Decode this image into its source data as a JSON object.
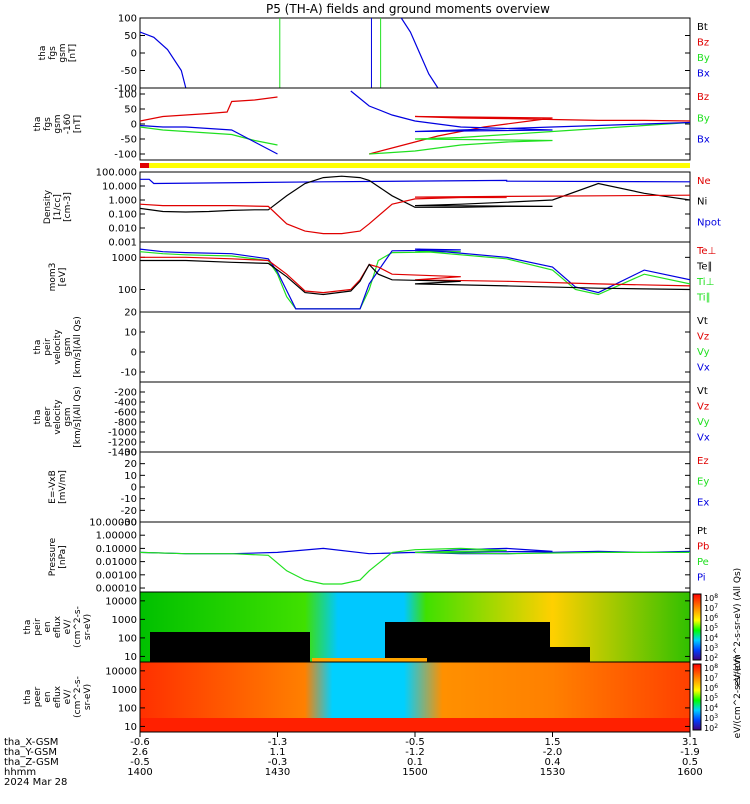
{
  "title": "P5 (TH-A) fields and ground moments overview",
  "colors": {
    "black": "#000000",
    "red": "#e00000",
    "green": "#20e020",
    "blue": "#0000e0",
    "yellow": "#ffff00"
  },
  "chart_data": [
    {
      "type": "line",
      "panel_id": "fgs",
      "ylabel": [
        "tha",
        "fgs",
        "gsm",
        "[nT]"
      ],
      "ylim": [
        -100,
        100
      ],
      "yticks": [
        "100",
        "50",
        "0",
        "-50",
        "-100"
      ],
      "legend": [
        {
          "label": "Bt",
          "color": "#000000"
        },
        {
          "label": "Bz",
          "color": "#e00000"
        },
        {
          "label": "By",
          "color": "#20e020"
        },
        {
          "label": "Bx",
          "color": "#0000e0"
        }
      ],
      "series": [
        {
          "name": "Bx",
          "color": "#0000e0",
          "x": [
            1400,
            1403,
            1406,
            1409,
            1410
          ],
          "y": [
            60,
            45,
            10,
            -50,
            -100
          ]
        },
        {
          "name": "Bx",
          "color": "#0000e0",
          "x": [
            1457,
            1459,
            1461,
            1463,
            1465
          ],
          "y": [
            100,
            60,
            0,
            -60,
            -100
          ]
        }
      ],
      "spikes": [
        {
          "x": 1430.5,
          "color": "#20e020"
        },
        {
          "x": 1450.5,
          "color": "#0000e0"
        },
        {
          "x": 1452.5,
          "color": "#20e020"
        }
      ]
    },
    {
      "type": "line",
      "panel_id": "fgs_detrended",
      "ylabel": [
        "tha",
        "fgs",
        "gsm",
        "-160",
        "[nT]"
      ],
      "ylim": [
        -120,
        120
      ],
      "yticks": [
        "100",
        "50",
        "0",
        "-50",
        "-100"
      ],
      "legend": [
        {
          "label": "Bz",
          "color": "#e00000"
        },
        {
          "label": "By",
          "color": "#20e020"
        },
        {
          "label": "Bx",
          "color": "#0000e0"
        }
      ],
      "series": [
        {
          "name": "Bz",
          "color": "#e00000",
          "x": [
            1400,
            1405,
            1410,
            1415,
            1419,
            1420,
            1425,
            1430
          ],
          "y": [
            10,
            25,
            30,
            35,
            40,
            75,
            80,
            90
          ]
        },
        {
          "name": "Bz",
          "color": "#e00000",
          "x": [
            1450,
            1455,
            1460,
            1465,
            1470,
            1475,
            1480,
            1485,
            1490,
            1500,
            1510,
            1520,
            1530,
            1540,
            1550,
            1560
          ],
          "y": [
            -100,
            -80,
            -60,
            -40,
            -25,
            -10,
            0,
            10,
            20,
            25,
            20,
            18,
            15,
            12,
            12,
            10
          ]
        },
        {
          "name": "By",
          "color": "#20e020",
          "x": [
            1400,
            1405,
            1410,
            1415,
            1420,
            1425,
            1430
          ],
          "y": [
            -10,
            -20,
            -25,
            -30,
            -35,
            -55,
            -70
          ]
        },
        {
          "name": "By",
          "color": "#20e020",
          "x": [
            1450,
            1460,
            1470,
            1480,
            1490,
            1500,
            1510,
            1520,
            1530,
            1540,
            1550,
            1560
          ],
          "y": [
            -100,
            -90,
            -70,
            -60,
            -55,
            -50,
            -45,
            -35,
            -25,
            -15,
            -5,
            5
          ]
        },
        {
          "name": "Bx",
          "color": "#0000e0",
          "x": [
            1400,
            1405,
            1410,
            1415,
            1420,
            1425,
            1430
          ],
          "y": [
            -5,
            -10,
            -10,
            -15,
            -20,
            -60,
            -100
          ]
        },
        {
          "name": "Bx",
          "color": "#0000e0",
          "x": [
            1446,
            1450,
            1455,
            1460,
            1465,
            1470,
            1480,
            1490,
            1500,
            1510,
            1520,
            1530,
            1540,
            1550,
            1560
          ],
          "y": [
            110,
            60,
            30,
            10,
            0,
            -10,
            -15,
            -20,
            -25,
            -20,
            -15,
            -10,
            -5,
            0,
            5
          ]
        }
      ],
      "mode_bar": [
        {
          "from": 1400,
          "to": 1402,
          "color": "#e00000"
        },
        {
          "from": 1402,
          "to": 1560,
          "color": "#ffff00"
        }
      ]
    },
    {
      "type": "line",
      "panel_id": "density",
      "ylabel": [
        "Density",
        "[1/cc]",
        "[cm-3]"
      ],
      "ylim": [
        0.001,
        100
      ],
      "yscale": "log",
      "yticks": [
        "100.000",
        "10.000",
        "1.000",
        "0.100",
        "0.010",
        "0.001"
      ],
      "legend": [
        {
          "label": "Ne",
          "color": "#e00000"
        },
        {
          "label": "Ni",
          "color": "#000000"
        },
        {
          "label": "Npot",
          "color": "#0000e0"
        }
      ],
      "series": [
        {
          "name": "Npot",
          "color": "#0000e0",
          "x": [
            1400,
            1402,
            1403,
            1440,
            1480,
            1520,
            1560
          ],
          "y": [
            30,
            30,
            15,
            20,
            25,
            22,
            20
          ]
        },
        {
          "name": "Ni",
          "color": "#000000",
          "x": [
            1400,
            1405,
            1410,
            1415,
            1420,
            1425,
            1428,
            1432,
            1436,
            1440,
            1444,
            1448,
            1450,
            1455,
            1460,
            1470,
            1480,
            1490,
            1500,
            1510,
            1520,
            1530,
            1540,
            1550,
            1560
          ],
          "y": [
            0.25,
            0.15,
            0.14,
            0.15,
            0.18,
            0.2,
            0.2,
            2,
            15,
            40,
            50,
            40,
            25,
            2,
            0.3,
            0.3,
            0.35,
            0.35,
            0.4,
            0.5,
            0.7,
            1,
            15,
            3,
            1
          ]
        },
        {
          "name": "Ne",
          "color": "#e00000",
          "x": [
            1400,
            1405,
            1410,
            1420,
            1428,
            1432,
            1436,
            1440,
            1444,
            1448,
            1450,
            1455,
            1460,
            1470,
            1480,
            1500,
            1520,
            1540,
            1560
          ],
          "y": [
            0.5,
            0.4,
            0.4,
            0.4,
            0.35,
            0.02,
            0.006,
            0.004,
            0.004,
            0.006,
            0.02,
            0.5,
            1.2,
            1.5,
            1.5,
            1.6,
            1.8,
            2,
            2.2
          ]
        }
      ]
    },
    {
      "type": "line",
      "panel_id": "temperature",
      "ylabel": [
        "mom3",
        "[eV]"
      ],
      "ylim": [
        20,
        3000
      ],
      "yscale": "log",
      "yticks": [
        "1000",
        "100"
      ],
      "legend": [
        {
          "label": "Te⊥",
          "color": "#e00000"
        },
        {
          "label": "Te∥",
          "color": "#000000"
        },
        {
          "label": "Ti⊥",
          "color": "#20e020"
        },
        {
          "label": "Ti∥",
          "color": "#20e020"
        }
      ],
      "series": [
        {
          "name": "Ti",
          "color": "#20e020",
          "x": [
            1400,
            1405,
            1410,
            1420,
            1428,
            1430,
            1432,
            1434,
            1438,
            1442,
            1448,
            1450,
            1452,
            1455,
            1470,
            1500,
            1520,
            1530,
            1535,
            1540,
            1550,
            1560
          ],
          "y": [
            1500,
            1300,
            1200,
            1100,
            800,
            300,
            60,
            25,
            25,
            25,
            25,
            100,
            800,
            1400,
            1500,
            1600,
            900,
            400,
            100,
            70,
            300,
            150
          ]
        },
        {
          "name": "Ti",
          "color": "#0000e0",
          "x": [
            1400,
            1405,
            1410,
            1420,
            1428,
            1430,
            1434,
            1440,
            1448,
            1450,
            1455,
            1470,
            1500,
            1520,
            1530,
            1535,
            1540,
            1550,
            1560
          ],
          "y": [
            1800,
            1500,
            1400,
            1300,
            900,
            350,
            25,
            25,
            25,
            150,
            1600,
            1700,
            1800,
            1000,
            500,
            120,
            80,
            400,
            200
          ]
        },
        {
          "name": "Te",
          "color": "#e00000",
          "x": [
            1400,
            1410,
            1420,
            1428,
            1432,
            1436,
            1440,
            1446,
            1448,
            1450,
            1452,
            1455,
            1470,
            1500,
            1520,
            1540,
            1560
          ],
          "y": [
            1000,
            1000,
            900,
            800,
            300,
            90,
            80,
            100,
            200,
            600,
            500,
            300,
            250,
            200,
            180,
            150,
            130
          ]
        },
        {
          "name": "Te",
          "color": "#000000",
          "x": [
            1400,
            1410,
            1420,
            1428,
            1432,
            1436,
            1440,
            1446,
            1448,
            1450,
            1452,
            1455,
            1470,
            1500,
            1520,
            1540,
            1560
          ],
          "y": [
            800,
            800,
            700,
            650,
            250,
            80,
            70,
            90,
            180,
            600,
            300,
            200,
            180,
            150,
            130,
            110,
            100
          ]
        }
      ]
    },
    {
      "type": "line",
      "panel_id": "peir_velocity",
      "ylabel": [
        "tha",
        "peir",
        "velocity",
        "gsm",
        "[km/s](All Qs)"
      ],
      "ylim": [
        -15,
        20
      ],
      "yticks": [
        "20",
        "10",
        "0",
        "-10"
      ],
      "legend": [
        {
          "label": "Vt",
          "color": "#000000"
        },
        {
          "label": "Vz",
          "color": "#e00000"
        },
        {
          "label": "Vy",
          "color": "#20e020"
        },
        {
          "label": "Vx",
          "color": "#0000e0"
        }
      ]
    },
    {
      "type": "line",
      "panel_id": "peer_velocity",
      "ylabel": [
        "tha",
        "peer",
        "velocity",
        "gsm",
        "[km/s](All Qs)"
      ],
      "ylim": [
        -1400,
        0
      ],
      "yticks": [
        "-200",
        "-400",
        "-600",
        "-800",
        "-1000",
        "-1200",
        "-1400"
      ],
      "legend": [
        {
          "label": "Vt",
          "color": "#000000"
        },
        {
          "label": "Vz",
          "color": "#e00000"
        },
        {
          "label": "Vy",
          "color": "#20e020"
        },
        {
          "label": "Vx",
          "color": "#0000e0"
        }
      ]
    },
    {
      "type": "line",
      "panel_id": "efield",
      "ylabel": [
        "E=-VxB",
        "[mV/m]"
      ],
      "ylim": [
        -30,
        30
      ],
      "yticks": [
        "30",
        "20",
        "10",
        "0",
        "-10",
        "-20",
        "-30"
      ],
      "legend": [
        {
          "label": "Ez",
          "color": "#e00000"
        },
        {
          "label": "Ey",
          "color": "#20e020"
        },
        {
          "label": "Ex",
          "color": "#0000e0"
        }
      ]
    },
    {
      "type": "line",
      "panel_id": "pressure",
      "ylabel": [
        "Pressure",
        "[nPa]"
      ],
      "ylim": [
        5e-05,
        10
      ],
      "yscale": "log",
      "yticks": [
        "10.00000",
        "1.00000",
        "0.10000",
        "0.01000",
        "0.00100",
        "0.00010"
      ],
      "legend": [
        {
          "label": "Pt",
          "color": "#000000"
        },
        {
          "label": "Pb",
          "color": "#e00000"
        },
        {
          "label": "Pe",
          "color": "#20e020"
        },
        {
          "label": "Pi",
          "color": "#0000e0"
        }
      ],
      "series": [
        {
          "name": "Pi",
          "color": "#0000e0",
          "x": [
            1400,
            1410,
            1420,
            1430,
            1440,
            1450,
            1460,
            1470,
            1480,
            1490,
            1500,
            1510,
            1520,
            1530,
            1540,
            1550,
            1560
          ],
          "y": [
            0.05,
            0.04,
            0.04,
            0.05,
            0.1,
            0.04,
            0.05,
            0.08,
            0.1,
            0.06,
            0.05,
            0.04,
            0.04,
            0.05,
            0.06,
            0.05,
            0.06
          ]
        },
        {
          "name": "Pe",
          "color": "#20e020",
          "x": [
            1400,
            1410,
            1420,
            1428,
            1432,
            1436,
            1440,
            1444,
            1448,
            1450,
            1455,
            1460,
            1470,
            1480,
            1500,
            1520,
            1540,
            1560
          ],
          "y": [
            0.05,
            0.04,
            0.04,
            0.03,
            0.002,
            0.0004,
            0.0002,
            0.0002,
            0.0004,
            0.002,
            0.05,
            0.08,
            0.1,
            0.07,
            0.05,
            0.04,
            0.05,
            0.05
          ]
        }
      ]
    },
    {
      "type": "heatmap",
      "panel_id": "peir_eflux",
      "ylabel": [
        "tha",
        "peir",
        "en",
        "eflux",
        "eV/",
        "(cm^2-s-",
        "sr-eV)"
      ],
      "ylim": [
        5,
        30000
      ],
      "yscale": "log",
      "yticks": [
        "10000",
        "1000",
        "100",
        "10"
      ],
      "colorbar": {
        "ticks": [
          "10^8",
          "10^7",
          "10^6",
          "10^5",
          "10^4",
          "10^3",
          "10^2"
        ],
        "label": "eV/(cm^2-s-sr-eV) (All Qs)"
      }
    },
    {
      "type": "heatmap",
      "panel_id": "peer_eflux",
      "ylabel": [
        "tha",
        "peer",
        "en",
        "eflux",
        "eV/",
        "(cm^2-s-",
        "sr-eV)"
      ],
      "ylim": [
        5,
        30000
      ],
      "yscale": "log",
      "yticks": [
        "10000",
        "1000",
        "100",
        "10"
      ],
      "colorbar": {
        "ticks": [
          "10^8",
          "10^7",
          "10^6",
          "10^5",
          "10^4",
          "10^3",
          "10^2"
        ],
        "label": "eV/(cm^2-s-sr-eV)"
      }
    }
  ],
  "x_axis": {
    "rows": [
      {
        "label": "tha_X-GSM",
        "values": [
          "-0.6",
          "-1.3",
          "-0.5",
          "1.5",
          "3.1"
        ]
      },
      {
        "label": "tha_Y-GSM",
        "values": [
          "2.6",
          "1.1",
          "-1.2",
          "-2.0",
          "-1.9"
        ]
      },
      {
        "label": "tha_Z-GSM",
        "values": [
          "-0.5",
          "-0.3",
          "0.1",
          "0.4",
          "0.5"
        ]
      },
      {
        "label": "hhmm",
        "values": [
          "1400",
          "1430",
          "1500",
          "1530",
          "1600"
        ]
      }
    ],
    "date": "2024 Mar 28"
  }
}
